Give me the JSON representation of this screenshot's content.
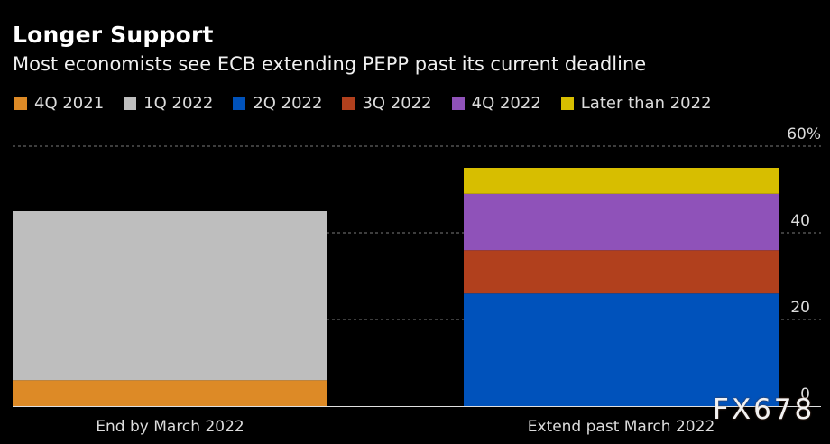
{
  "chart_data": {
    "type": "bar",
    "stacked": true,
    "title": "Longer Support",
    "subtitle": "Most economists see ECB extending PEPP past its current deadline",
    "xlabel": "",
    "ylabel": "",
    "categories": [
      "End by March 2022",
      "Extend past March 2022"
    ],
    "series": [
      {
        "name": "4Q 2021",
        "color": "#dd8a26",
        "values": [
          6,
          0
        ]
      },
      {
        "name": "1Q 2022",
        "color": "#bebebe",
        "values": [
          39,
          0
        ]
      },
      {
        "name": "2Q 2022",
        "color": "#0052bb",
        "values": [
          0,
          26
        ]
      },
      {
        "name": "3Q 2022",
        "color": "#b1401d",
        "values": [
          0,
          10
        ]
      },
      {
        "name": "4Q 2022",
        "color": "#8f52b9",
        "values": [
          0,
          13
        ]
      },
      {
        "name": "Later than 2022",
        "color": "#d7be00",
        "values": [
          0,
          6
        ]
      }
    ],
    "ylim": [
      0,
      60
    ],
    "yticks": [
      0,
      20,
      40,
      60
    ],
    "ytick_labels": [
      "0",
      "20",
      "40",
      "60%"
    ],
    "grid": true,
    "legend_position": "top-left",
    "yaxis_position": "right"
  },
  "watermark": "FX678"
}
